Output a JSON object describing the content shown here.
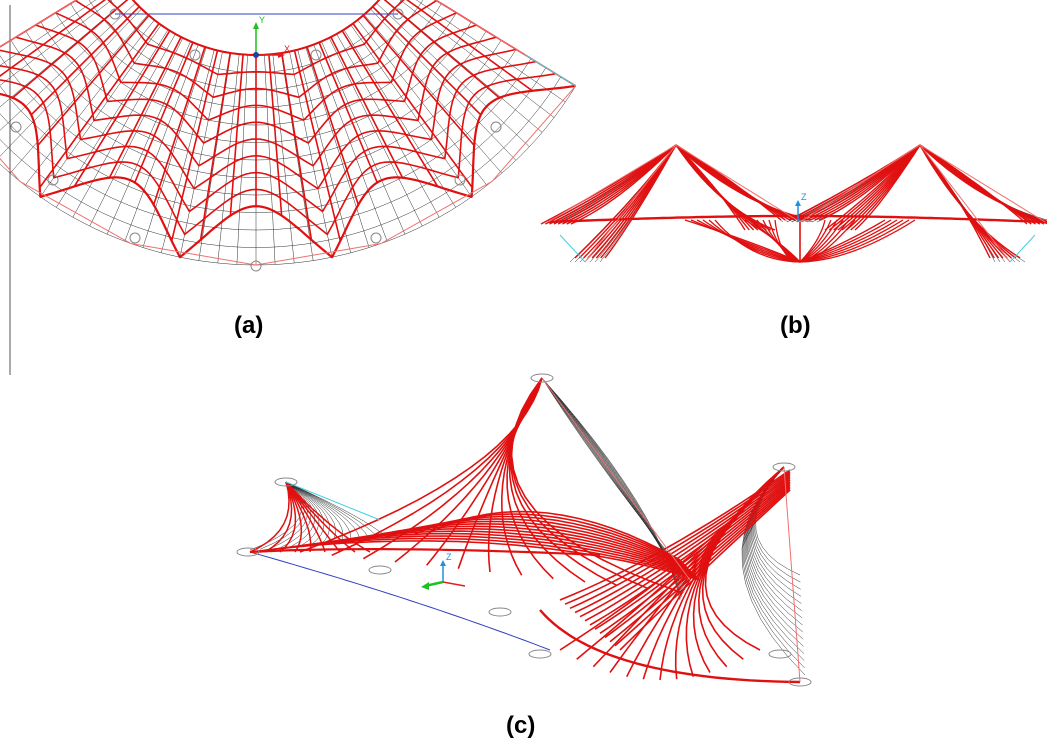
{
  "figure": {
    "panels": [
      {
        "id": "a",
        "caption": "(a)",
        "view": "plan"
      },
      {
        "id": "b",
        "caption": "(b)",
        "view": "elevation"
      },
      {
        "id": "c",
        "caption": "(c)",
        "view": "perspective"
      }
    ],
    "axis_labels": {
      "x": "X",
      "y": "Y",
      "z": "Z"
    },
    "colors": {
      "cable_mesh": "#e01010",
      "edge_cable": "#f07070",
      "membrane_grid": "#303030",
      "fixed_edge": "#3040c0",
      "cyan_edge": "#40d0e0",
      "axis_x": "#e02020",
      "axis_y": "#20c020",
      "axis_z": "#2090e0",
      "support": "#888888"
    }
  }
}
